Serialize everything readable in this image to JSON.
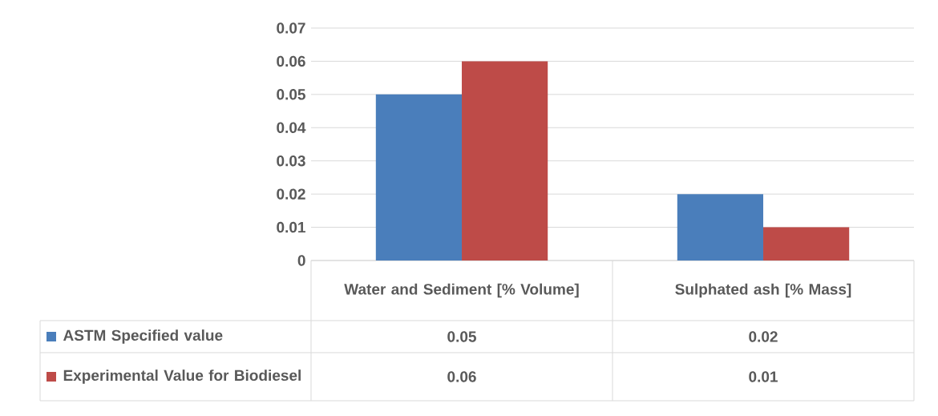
{
  "chart_data": {
    "type": "bar",
    "categories": [
      "Water and Sediment [% Volume]",
      "Sulphated ash [% Mass]"
    ],
    "series": [
      {
        "name": "ASTM Specified value",
        "color": "#4a7ebb",
        "values": [
          0.05,
          0.02
        ]
      },
      {
        "name": "Experimental Value for Biodiesel",
        "color": "#be4b48",
        "values": [
          0.06,
          0.01
        ]
      }
    ],
    "ylim": [
      0,
      0.07
    ],
    "yticks": [
      0,
      0.01,
      0.02,
      0.03,
      0.04,
      0.05,
      0.06,
      0.07
    ],
    "grid": "y",
    "legend": "bottom left",
    "data_labels": true
  }
}
